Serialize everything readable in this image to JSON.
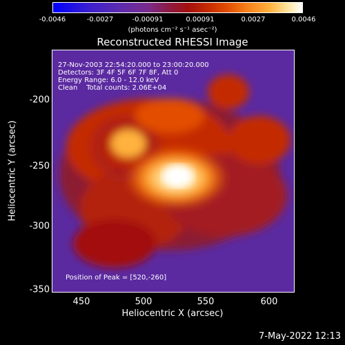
{
  "colorbar": {
    "ticks": [
      "-0.0046",
      "-0.0027",
      "-0.00091",
      "0.00091",
      "0.0027",
      "0.0046"
    ],
    "unit_label": "(photons cm⁻² s⁻¹ asec⁻²)"
  },
  "title": "Reconstructed RHESSI Image",
  "info": {
    "line1": "27-Nov-2003 22:54:20.000 to 23:00:20.000",
    "line2": "Detectors: 3F 4F 5F 6F 7F 8F, Att 0",
    "line3": "Energy Range: 6.0 - 12.0 keV",
    "line4": "Clean    Total counts: 2.06E+04"
  },
  "peak_text": "Position of Peak = [520,-260]",
  "axes": {
    "xlabel": "Heliocentric X (arcsec)",
    "ylabel": "Heliocentric Y (arcsec)",
    "xticks": [
      "450",
      "500",
      "550",
      "600"
    ],
    "yticks": [
      "-200",
      "-250",
      "-300",
      "-350"
    ]
  },
  "timestamp": "7-May-2022 12:13",
  "chart_data": {
    "type": "heatmap",
    "title": "Reconstructed RHESSI Image",
    "xlabel": "Heliocentric X (arcsec)",
    "ylabel": "Heliocentric Y (arcsec)",
    "xlim": [
      426,
      620
    ],
    "ylim": [
      -355,
      -160
    ],
    "colorbar_range": [
      -0.0046,
      0.0046
    ],
    "peak": [
      520,
      -260
    ],
    "colormap": "blue-purple-red-yellow-white"
  }
}
